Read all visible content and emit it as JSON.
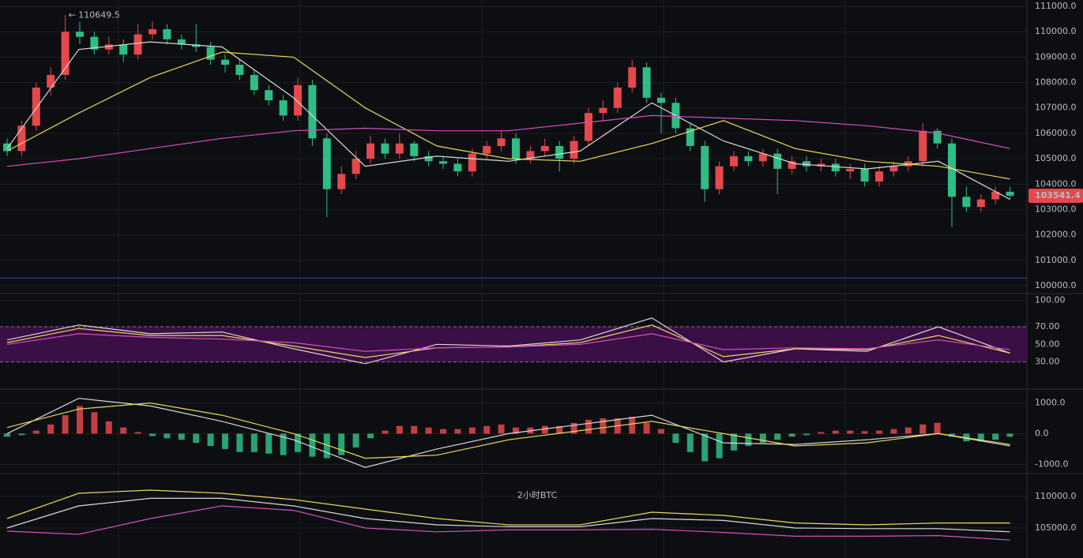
{
  "chart_data": [
    {
      "type": "candlestick",
      "up_color": "#e5484d",
      "down_color": "#2ebd85",
      "ylim": [
        99750,
        111250
      ],
      "yticks": [
        {
          "value": 100000,
          "label": "100000.0"
        },
        {
          "value": 101000,
          "label": "101000.0"
        },
        {
          "value": 102000,
          "label": "102000.0"
        },
        {
          "value": 103000,
          "label": "103000.0"
        },
        {
          "value": 104000,
          "label": "104000.0"
        },
        {
          "value": 105000,
          "label": "105000.0"
        },
        {
          "value": 106000,
          "label": "106000.0"
        },
        {
          "value": 107000,
          "label": "107000.0"
        },
        {
          "value": 108000,
          "label": "108000.0"
        },
        {
          "value": 109000,
          "label": "109000.0"
        },
        {
          "value": 110000,
          "label": "110000.0"
        },
        {
          "value": 111000,
          "label": "111000.0"
        }
      ],
      "grid": true,
      "high_label": "← 110649.5",
      "last_label": "103541.4",
      "hline": 100300,
      "ohlc": [
        [
          105600,
          105800,
          105100,
          105300
        ],
        [
          105300,
          106500,
          105100,
          106300
        ],
        [
          106300,
          108000,
          106100,
          107800
        ],
        [
          107800,
          108600,
          107500,
          108300
        ],
        [
          108300,
          110649.5,
          108100,
          110000
        ],
        [
          110000,
          110400,
          109500,
          109800
        ],
        [
          109800,
          110000,
          109100,
          109300
        ],
        [
          109300,
          109800,
          109100,
          109500
        ],
        [
          109500,
          109700,
          108800,
          109100
        ],
        [
          109100,
          110300,
          108900,
          109900
        ],
        [
          109900,
          110400,
          109700,
          110100
        ],
        [
          110100,
          110300,
          109500,
          109700
        ],
        [
          109700,
          109900,
          109300,
          109500
        ],
        [
          109500,
          110300,
          109200,
          109400
        ],
        [
          109400,
          109600,
          108700,
          108900
        ],
        [
          108900,
          109100,
          108400,
          108700
        ],
        [
          108700,
          108900,
          108100,
          108300
        ],
        [
          108300,
          108500,
          107500,
          107700
        ],
        [
          107700,
          107900,
          107100,
          107300
        ],
        [
          107300,
          107500,
          106500,
          106700
        ],
        [
          106700,
          108200,
          106500,
          107900
        ],
        [
          107900,
          108100,
          105500,
          105800
        ],
        [
          105800,
          106000,
          102700,
          103800
        ],
        [
          103800,
          104700,
          103600,
          104400
        ],
        [
          104400,
          105300,
          104200,
          105000
        ],
        [
          105000,
          105900,
          104800,
          105600
        ],
        [
          105600,
          105800,
          105000,
          105200
        ],
        [
          105200,
          106000,
          105000,
          105600
        ],
        [
          105600,
          105700,
          104900,
          105100
        ],
        [
          105100,
          105300,
          104700,
          104900
        ],
        [
          104900,
          105100,
          104600,
          104800
        ],
        [
          104800,
          105000,
          104300,
          104500
        ],
        [
          104500,
          105400,
          104300,
          105200
        ],
        [
          105200,
          105700,
          105000,
          105500
        ],
        [
          105500,
          106100,
          105300,
          105800
        ],
        [
          105800,
          106000,
          104800,
          105000
        ],
        [
          105000,
          105500,
          104800,
          105300
        ],
        [
          105300,
          105800,
          105100,
          105500
        ],
        [
          105500,
          105700,
          104500,
          105000
        ],
        [
          105000,
          105900,
          104800,
          105700
        ],
        [
          105700,
          107000,
          105500,
          106800
        ],
        [
          106800,
          107300,
          106500,
          107000
        ],
        [
          107000,
          108000,
          106800,
          107800
        ],
        [
          107800,
          108900,
          107600,
          108600
        ],
        [
          108600,
          108800,
          107200,
          107400
        ],
        [
          107400,
          107600,
          106000,
          107200
        ],
        [
          107200,
          107400,
          106000,
          106200
        ],
        [
          106200,
          106400,
          105300,
          105500
        ],
        [
          105500,
          105700,
          103300,
          103800
        ],
        [
          103800,
          104900,
          103600,
          104700
        ],
        [
          104700,
          105300,
          104500,
          105100
        ],
        [
          105100,
          105300,
          104700,
          104900
        ],
        [
          104900,
          105400,
          104700,
          105200
        ],
        [
          105200,
          105400,
          103600,
          104600
        ],
        [
          104600,
          105100,
          104400,
          104900
        ],
        [
          104900,
          105100,
          104500,
          104700
        ],
        [
          104700,
          105000,
          104500,
          104800
        ],
        [
          104800,
          105000,
          104300,
          104500
        ],
        [
          104500,
          104800,
          104200,
          104600
        ],
        [
          104600,
          104800,
          103900,
          104100
        ],
        [
          104100,
          104700,
          103900,
          104500
        ],
        [
          104500,
          104900,
          104300,
          104700
        ],
        [
          104700,
          105100,
          104500,
          104900
        ],
        [
          104900,
          106400,
          104700,
          106100
        ],
        [
          106100,
          106200,
          105400,
          105600
        ],
        [
          105600,
          105800,
          102300,
          103500
        ],
        [
          103500,
          103900,
          102900,
          103100
        ],
        [
          103100,
          103600,
          102900,
          103400
        ],
        [
          103400,
          103900,
          103200,
          103700
        ],
        [
          103700,
          103900,
          103400,
          103541.4
        ]
      ],
      "series": [
        {
          "color": "#d9d9d9",
          "values": [
            105400,
            109300,
            109600,
            109400,
            107400,
            104700,
            105100,
            104900,
            105300,
            107200,
            105700,
            104800,
            104600,
            104900,
            103400
          ]
        },
        {
          "color": "#e8d95a",
          "values": [
            105300,
            106800,
            108200,
            109200,
            109000,
            107000,
            105500,
            105000,
            104900,
            105600,
            106500,
            105400,
            104900,
            104700,
            104200
          ]
        },
        {
          "color": "#d44fc0",
          "values": [
            104700,
            105000,
            105400,
            105800,
            106100,
            106200,
            106100,
            106100,
            106400,
            106700,
            106600,
            106500,
            106300,
            106000,
            105400
          ]
        }
      ]
    },
    {
      "type": "line",
      "ylim": [
        0,
        105
      ],
      "yticks": [
        {
          "value": 30,
          "label": "30.00"
        },
        {
          "value": 50,
          "label": "50.00"
        },
        {
          "value": 70,
          "label": "70.00"
        },
        {
          "value": 100,
          "label": "100.00"
        }
      ],
      "band": [
        30,
        70
      ],
      "band_color": "#3a0f45",
      "series": [
        {
          "color": "#d9d9d9",
          "values": [
            55,
            72,
            62,
            64,
            45,
            28,
            50,
            48,
            55,
            80,
            30,
            45,
            42,
            70,
            40
          ]
        },
        {
          "color": "#e8d95a",
          "values": [
            52,
            68,
            60,
            60,
            48,
            35,
            46,
            47,
            52,
            72,
            36,
            45,
            44,
            60,
            40
          ]
        },
        {
          "color": "#d44fc0",
          "values": [
            50,
            62,
            58,
            56,
            52,
            42,
            46,
            47,
            50,
            62,
            44,
            46,
            45,
            55,
            44
          ]
        }
      ]
    },
    {
      "type": "bar",
      "ylim": [
        -1300,
        1400
      ],
      "yticks": [
        {
          "value": -1000,
          "label": "-1000.0"
        },
        {
          "value": 0,
          "label": "0.0"
        },
        {
          "value": 1000,
          "label": "1000.0"
        }
      ],
      "up_color": "#e5484d",
      "down_color": "#2ebd85",
      "values": [
        -100,
        -50,
        100,
        300,
        600,
        900,
        700,
        400,
        200,
        50,
        -80,
        -150,
        -200,
        -300,
        -400,
        -500,
        -600,
        -600,
        -650,
        -700,
        -600,
        -750,
        -800,
        -700,
        -450,
        -150,
        100,
        250,
        250,
        200,
        150,
        150,
        200,
        250,
        300,
        200,
        200,
        250,
        250,
        350,
        450,
        500,
        500,
        550,
        350,
        150,
        -300,
        -600,
        -900,
        -800,
        -550,
        -400,
        -300,
        -200,
        -100,
        -50,
        50,
        100,
        100,
        80,
        100,
        150,
        200,
        300,
        350,
        -100,
        -250,
        -250,
        -200,
        -100
      ],
      "series": [
        {
          "color": "#d9d9d9",
          "values": [
            0,
            1150,
            900,
            400,
            -200,
            -1100,
            -500,
            0,
            300,
            600,
            -300,
            -350,
            -200,
            0,
            -400
          ]
        },
        {
          "color": "#e8d95a",
          "values": [
            200,
            800,
            1000,
            600,
            0,
            -800,
            -700,
            -200,
            100,
            400,
            0,
            -400,
            -300,
            0,
            -350
          ]
        }
      ]
    },
    {
      "type": "line",
      "title": "2小时BTC",
      "ylim": [
        100250,
        113375
      ],
      "yticks": [
        {
          "value": 105000,
          "label": "105000.0"
        },
        {
          "value": 110000,
          "label": "110000.0"
        }
      ],
      "series": [
        {
          "color": "#e8d95a",
          "values": [
            106500,
            110500,
            111000,
            110500,
            109500,
            108000,
            106500,
            105500,
            105500,
            107500,
            107000,
            105800,
            105500,
            105800,
            105800
          ]
        },
        {
          "color": "#d9d9d9",
          "values": [
            105000,
            108500,
            109700,
            109700,
            108500,
            106500,
            105500,
            105200,
            105200,
            106500,
            106200,
            105000,
            104900,
            104900,
            104400
          ]
        },
        {
          "color": "#d44fc0",
          "values": [
            104500,
            104000,
            106500,
            108500,
            107800,
            105000,
            104400,
            104700,
            104700,
            104800,
            104300,
            103700,
            103700,
            103800,
            103100
          ]
        }
      ]
    }
  ]
}
